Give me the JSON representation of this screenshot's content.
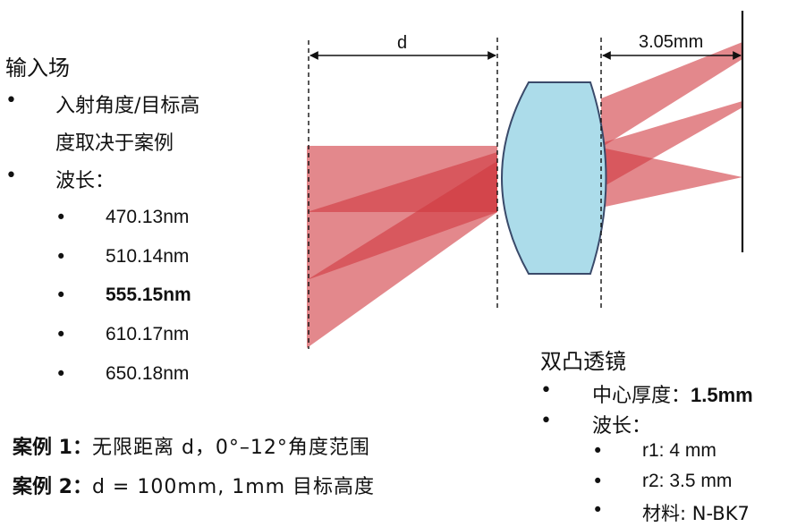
{
  "diagram": {
    "label_d": "d",
    "label_gap": "3.05mm"
  },
  "input": {
    "title": "输入场",
    "bullets": [
      {
        "text": "入射角度/目标高",
        "text2": "度取决于案例"
      },
      {
        "text": "波长："
      }
    ],
    "wavelengths": [
      "470.13nm",
      "510.14nm",
      "555.15nm",
      "610.17nm",
      "650.18nm"
    ],
    "bold_index": 2,
    "bullet_char": "•"
  },
  "cases": [
    {
      "label": "案例 1：",
      "text": "无限距离 d，0°–12°角度范围"
    },
    {
      "label": "案例 2：",
      "text": "d = 100mm, 1mm 目标高度"
    }
  ],
  "lens": {
    "title": "双凸透镜",
    "bullets": [
      {
        "label": "中心厚度：",
        "value": "1.5mm"
      },
      {
        "label": "波长：",
        "value": ""
      }
    ],
    "params": [
      "r1: 4 mm",
      "r2: 3.5 mm",
      "材料: N-BK7"
    ]
  },
  "colors": {
    "beam": "#d0393f",
    "lens_fill": "#acdcea",
    "lens_stroke": "#3a4a6a"
  }
}
